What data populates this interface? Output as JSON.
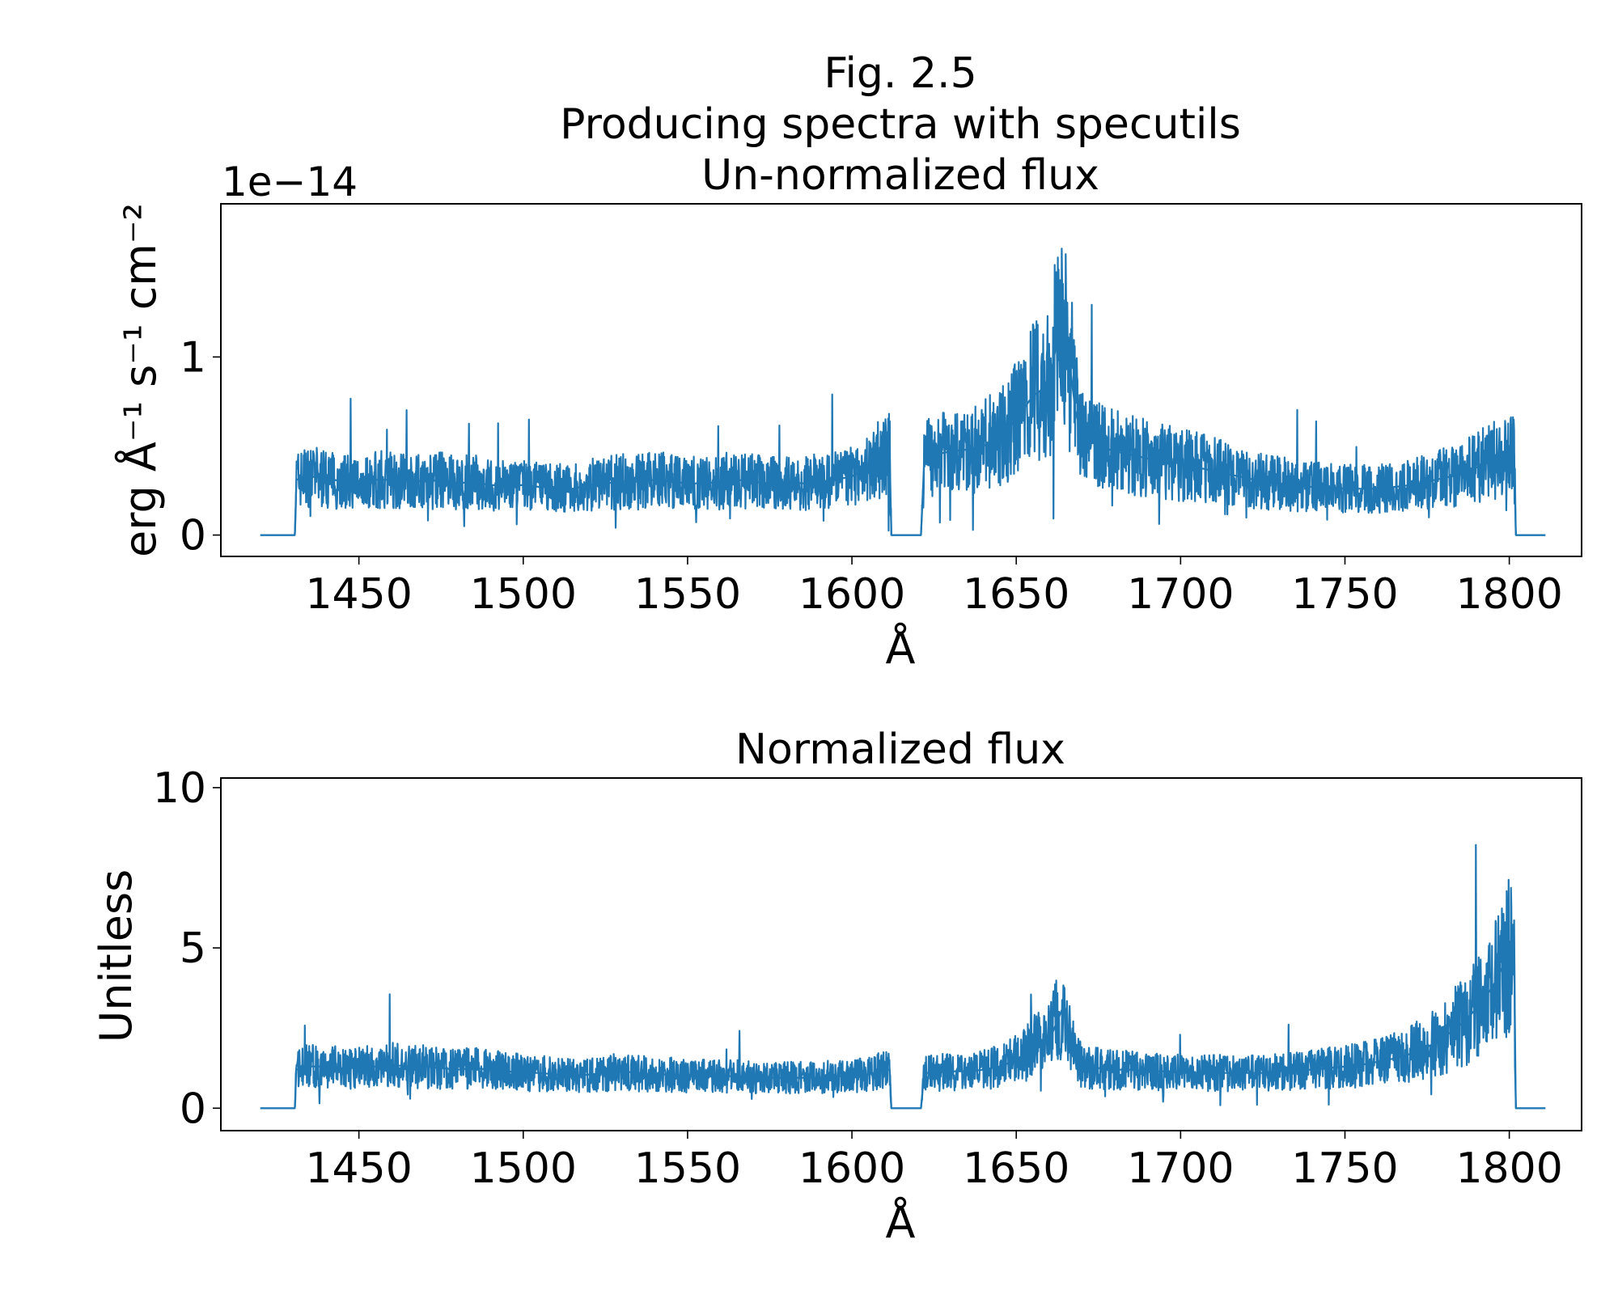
{
  "figure": {
    "suptitle_lines": [
      "Fig. 2.5",
      "Producing spectra with specutils"
    ]
  },
  "chart_data": [
    {
      "type": "line",
      "title": "Un-normalized flux",
      "xlabel": "Å",
      "ylabel": "erg Å⁻¹ s⁻¹ cm⁻²",
      "y_offset_text": "1e−14",
      "xlim": [
        1408,
        1822
      ],
      "ylim": [
        -0.12,
        1.86
      ],
      "xticks": [
        1450,
        1500,
        1550,
        1600,
        1650,
        1700,
        1750,
        1800
      ],
      "xtick_labels": [
        "1450",
        "1500",
        "1550",
        "1600",
        "1650",
        "1700",
        "1750",
        "1800"
      ],
      "yticks": [
        0,
        1
      ],
      "ytick_labels": [
        "0",
        "1"
      ],
      "grid": false,
      "color": "#1f77b4",
      "series": [
        {
          "x": [
            1420,
            1430.5,
            1431,
            1434,
            1440,
            1445,
            1450,
            1455,
            1460,
            1465,
            1470,
            1475,
            1480,
            1485,
            1490,
            1495,
            1500,
            1505,
            1510,
            1515,
            1520,
            1525,
            1530,
            1535,
            1540,
            1545,
            1550,
            1555,
            1560,
            1565,
            1570,
            1575,
            1580,
            1585,
            1590,
            1595,
            1600,
            1605,
            1610,
            1611.5,
            1612,
            1621,
            1622,
            1625,
            1630,
            1635,
            1640,
            1645,
            1650,
            1655,
            1658,
            1660,
            1662,
            1664,
            1666,
            1668,
            1670,
            1675,
            1680,
            1685,
            1690,
            1695,
            1700,
            1705,
            1710,
            1715,
            1720,
            1725,
            1730,
            1735,
            1740,
            1745,
            1750,
            1755,
            1760,
            1765,
            1770,
            1775,
            1780,
            1785,
            1790,
            1795,
            1800,
            1801.5,
            1802,
            1811
          ],
          "y": [
            0,
            0,
            0.31,
            0.33,
            0.32,
            0.3,
            0.3,
            0.31,
            0.31,
            0.31,
            0.3,
            0.31,
            0.29,
            0.3,
            0.28,
            0.28,
            0.28,
            0.27,
            0.27,
            0.26,
            0.28,
            0.29,
            0.3,
            0.3,
            0.31,
            0.3,
            0.29,
            0.29,
            0.3,
            0.31,
            0.3,
            0.29,
            0.3,
            0.29,
            0.3,
            0.31,
            0.33,
            0.38,
            0.45,
            0.45,
            0,
            0,
            0.42,
            0.45,
            0.47,
            0.48,
            0.5,
            0.55,
            0.65,
            0.78,
            0.82,
            0.85,
            1.05,
            1.2,
            1.0,
            0.7,
            0.55,
            0.5,
            0.47,
            0.45,
            0.43,
            0.42,
            0.4,
            0.38,
            0.36,
            0.34,
            0.32,
            0.3,
            0.29,
            0.28,
            0.27,
            0.27,
            0.26,
            0.26,
            0.26,
            0.27,
            0.28,
            0.3,
            0.32,
            0.34,
            0.38,
            0.42,
            0.45,
            0.45,
            0,
            0
          ]
        }
      ]
    },
    {
      "type": "line",
      "title": "Normalized flux",
      "xlabel": "Å",
      "ylabel": "Unitless",
      "xlim": [
        1408,
        1822
      ],
      "ylim": [
        -0.7,
        10.3
      ],
      "xticks": [
        1450,
        1500,
        1550,
        1600,
        1650,
        1700,
        1750,
        1800
      ],
      "xtick_labels": [
        "1450",
        "1500",
        "1550",
        "1600",
        "1650",
        "1700",
        "1750",
        "1800"
      ],
      "yticks": [
        0,
        5,
        10
      ],
      "ytick_labels": [
        "0",
        "5",
        "10"
      ],
      "grid": false,
      "color": "#1f77b4",
      "series": [
        {
          "x": [
            1420,
            1430.5,
            1431,
            1434,
            1440,
            1445,
            1450,
            1455,
            1460,
            1465,
            1470,
            1475,
            1480,
            1485,
            1490,
            1495,
            1500,
            1505,
            1510,
            1515,
            1520,
            1525,
            1530,
            1535,
            1540,
            1545,
            1550,
            1555,
            1560,
            1565,
            1570,
            1575,
            1580,
            1585,
            1590,
            1595,
            1600,
            1605,
            1610,
            1611.5,
            1612,
            1621,
            1622,
            1625,
            1630,
            1635,
            1640,
            1645,
            1650,
            1655,
            1658,
            1660,
            1662,
            1664,
            1666,
            1668,
            1670,
            1675,
            1680,
            1685,
            1690,
            1695,
            1700,
            1705,
            1710,
            1715,
            1720,
            1725,
            1730,
            1735,
            1740,
            1745,
            1750,
            1755,
            1760,
            1765,
            1770,
            1775,
            1780,
            1785,
            1790,
            1795,
            1800,
            1801.5,
            1802,
            1811
          ],
          "y": [
            0,
            0,
            1.2,
            1.3,
            1.3,
            1.25,
            1.25,
            1.3,
            1.35,
            1.3,
            1.3,
            1.25,
            1.2,
            1.25,
            1.2,
            1.15,
            1.1,
            1.1,
            1.05,
            1.0,
            1.05,
            1.1,
            1.15,
            1.1,
            1.05,
            1.05,
            1.0,
            1.0,
            1.0,
            1.0,
            0.95,
            0.95,
            0.95,
            0.95,
            0.95,
            1.0,
            1.0,
            1.05,
            1.2,
            1.2,
            0,
            0,
            1.1,
            1.1,
            1.15,
            1.15,
            1.2,
            1.3,
            1.5,
            1.9,
            2.0,
            2.1,
            2.6,
            3.1,
            2.5,
            1.6,
            1.3,
            1.25,
            1.2,
            1.2,
            1.15,
            1.15,
            1.1,
            1.1,
            1.1,
            1.1,
            1.1,
            1.1,
            1.15,
            1.2,
            1.2,
            1.25,
            1.3,
            1.35,
            1.45,
            1.55,
            1.7,
            1.9,
            2.2,
            2.6,
            3.1,
            3.8,
            4.8,
            4.8,
            0,
            0
          ]
        }
      ]
    }
  ]
}
